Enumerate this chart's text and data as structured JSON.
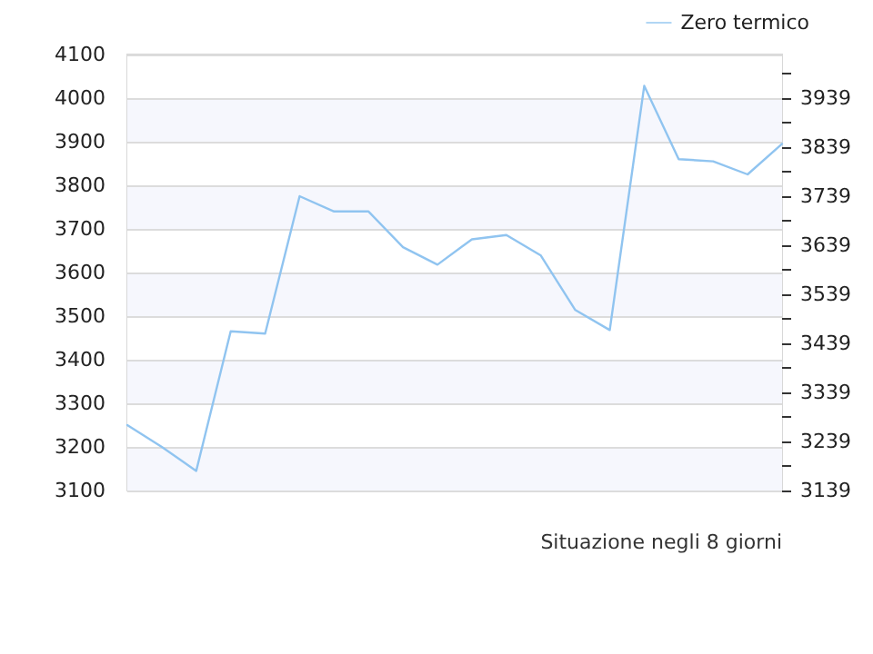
{
  "chart_data": {
    "type": "line",
    "xlabel": "Situazione negli 8 giorni",
    "categories": [
      null,
      null,
      null,
      null,
      null,
      null,
      null,
      null,
      null,
      null,
      null,
      null,
      null,
      null,
      null,
      null,
      null,
      null,
      null,
      null
    ],
    "series": [
      {
        "name": "Zero termico",
        "color": "#90c4f0",
        "values": [
          3250,
          3200,
          3145,
          3465,
          3460,
          3775,
          3740,
          3740,
          3658,
          3618,
          3676,
          3686,
          3639,
          3514,
          3468,
          4028,
          3860,
          3855,
          3825,
          3895
        ]
      }
    ],
    "ylim": [
      3100,
      4100
    ],
    "yticks": [
      3100,
      3200,
      3300,
      3400,
      3500,
      3600,
      3700,
      3800,
      3900,
      4000,
      4100
    ],
    "y2lim": [
      3139,
      4028
    ],
    "y2ticks": [
      3139,
      {
        "value": 3189,
        "label": null
      },
      3239,
      {
        "value": 3289,
        "label": null
      },
      3339,
      {
        "value": 3389,
        "label": null
      },
      3439,
      {
        "value": 3489,
        "label": null
      },
      3539,
      {
        "value": 3589,
        "label": null
      },
      3639,
      {
        "value": 3689,
        "label": null
      },
      3739,
      {
        "value": 3789,
        "label": null
      },
      3839,
      {
        "value": 3889,
        "label": null
      },
      3939,
      {
        "value": 3989,
        "label": null
      }
    ],
    "grid": "y",
    "legend": "top right",
    "marker": "none",
    "line_style": "solid"
  }
}
